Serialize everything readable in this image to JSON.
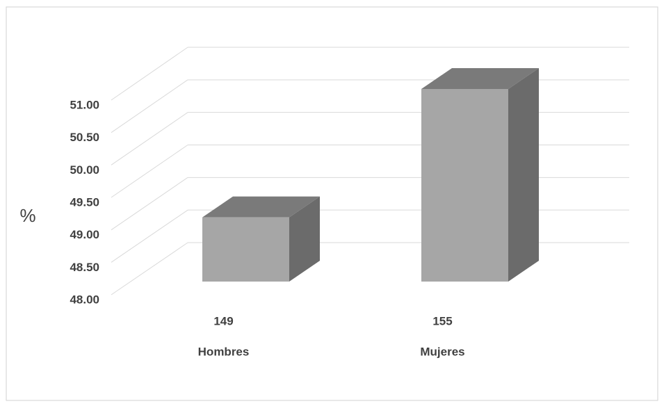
{
  "chart_data": {
    "type": "bar3d",
    "y_label": "%",
    "categories": [
      "Hombres",
      "Mujeres"
    ],
    "counts": [
      149,
      155
    ],
    "values": [
      49.0,
      51.0
    ],
    "color": "#a6a6a6",
    "ylim": [
      48,
      51
    ],
    "yticks": [
      {
        "value": 48,
        "label": "48.00"
      },
      {
        "value": 48.5,
        "label": "48.50"
      },
      {
        "value": 49,
        "label": "49.00"
      },
      {
        "value": 49.5,
        "label": "49.50"
      },
      {
        "value": 50,
        "label": "50.00"
      },
      {
        "value": 50.5,
        "label": "50.50"
      },
      {
        "value": 51,
        "label": "51.00"
      }
    ],
    "grid": true
  }
}
